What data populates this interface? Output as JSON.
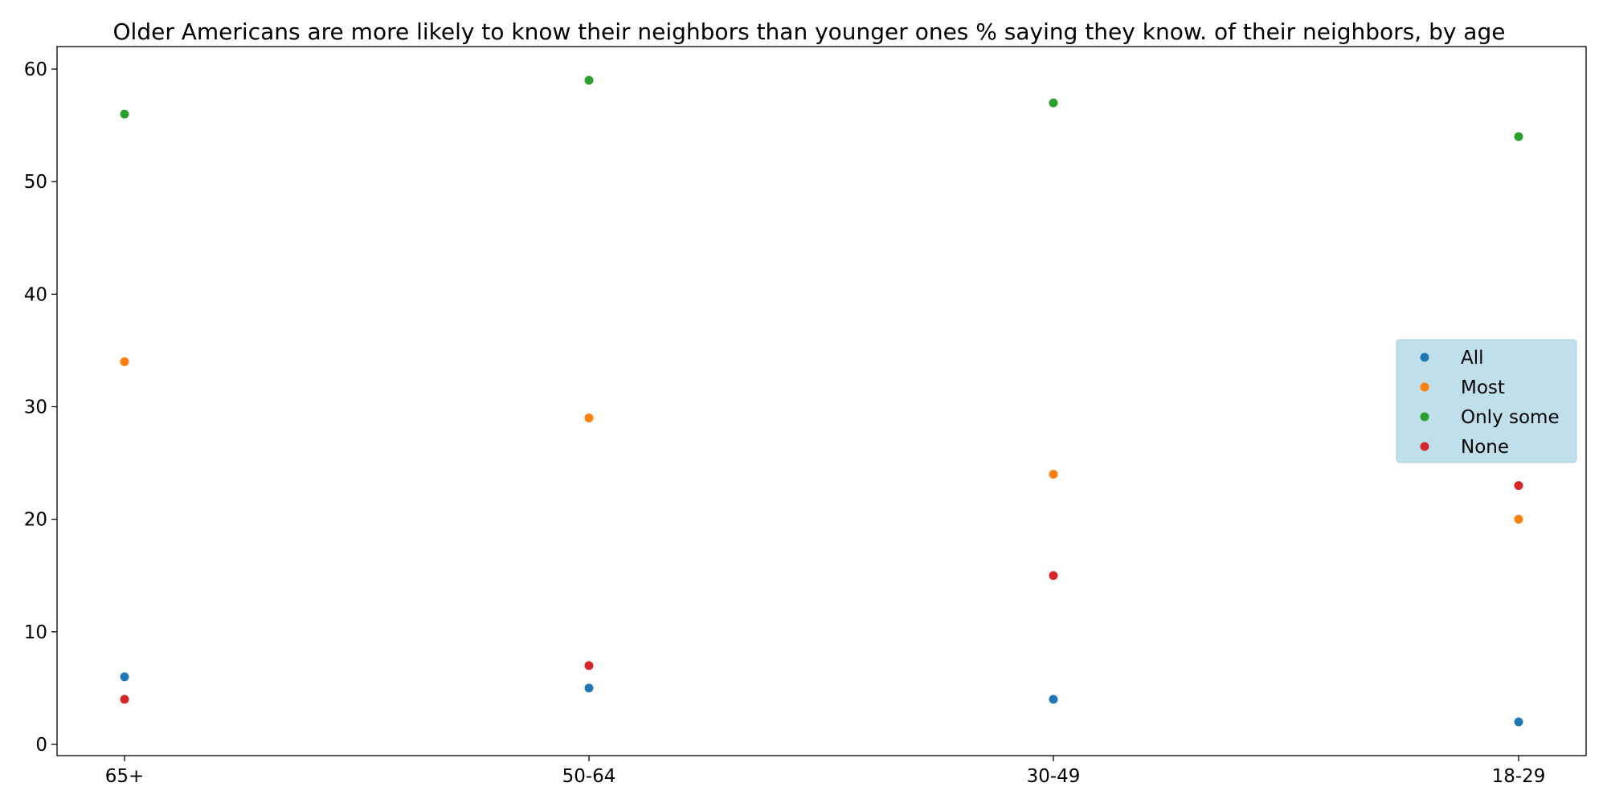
{
  "chart_data": {
    "type": "scatter",
    "title": "Older Americans are more likely to know their neighbors than younger ones % saying they know. of their neighbors, by age",
    "xlabel": "",
    "ylabel": "",
    "categories": [
      "65+",
      "50-64",
      "30-49",
      "18-29"
    ],
    "ylim": [
      -1,
      62
    ],
    "yticks": [
      0,
      10,
      20,
      30,
      40,
      50,
      60
    ],
    "grid": false,
    "legend_position": "center-right",
    "legend_background": "#bfe0ea",
    "series": [
      {
        "name": "All",
        "color": "#1f77b4",
        "values": [
          6,
          5,
          4,
          2
        ]
      },
      {
        "name": "Most",
        "color": "#ff7f0e",
        "values": [
          34,
          29,
          24,
          20
        ]
      },
      {
        "name": "Only some",
        "color": "#2ca02c",
        "values": [
          56,
          59,
          57,
          54
        ]
      },
      {
        "name": "None",
        "color": "#d62728",
        "values": [
          4,
          7,
          15,
          23
        ]
      }
    ]
  }
}
